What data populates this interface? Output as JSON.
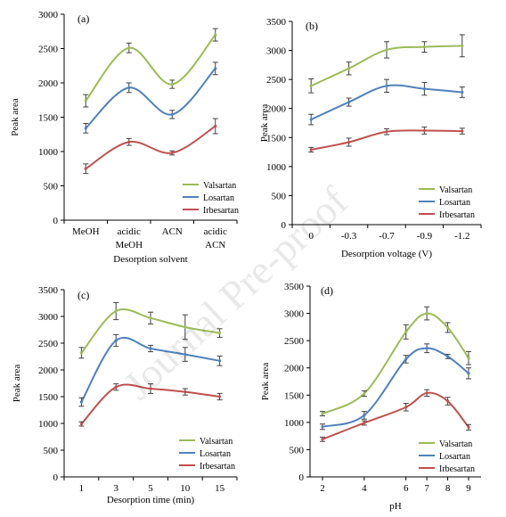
{
  "watermark": "Journal Pre-proof",
  "colors": {
    "Valsartan": "#9bbb59",
    "Losartan": "#4f81bd",
    "Irbesartan": "#c0504d",
    "errorbar": "#404040",
    "axis": "#000000"
  },
  "chart_data": [
    {
      "id": "a",
      "panel_label": "(a)",
      "type": "line",
      "xlabel": "Desorption solvent",
      "ylabel": "Peak area",
      "categories": [
        [
          "MeOH"
        ],
        [
          "acidic",
          "MeOH"
        ],
        [
          "ACN"
        ],
        [
          "acidic",
          "ACN"
        ]
      ],
      "x": [
        0,
        1,
        2,
        3
      ],
      "ylim": [
        0,
        3000
      ],
      "yticks": [
        0,
        500,
        1000,
        1500,
        2000,
        2500,
        3000
      ],
      "legend_position": "bottom-right",
      "series": [
        {
          "name": "Valsartan",
          "values": [
            1740,
            2510,
            1980,
            2700
          ],
          "errors": [
            90,
            70,
            60,
            90
          ]
        },
        {
          "name": "Losartan",
          "values": [
            1340,
            1930,
            1540,
            2210
          ],
          "errors": [
            70,
            70,
            60,
            90
          ]
        },
        {
          "name": "Irbesartan",
          "values": [
            750,
            1140,
            980,
            1370
          ],
          "errors": [
            70,
            50,
            30,
            110
          ]
        }
      ]
    },
    {
      "id": "b",
      "panel_label": "(b)",
      "type": "line",
      "xlabel": "Desorption voltage (V)",
      "ylabel": "Peak area",
      "categories": [
        [
          "0"
        ],
        [
          "-0.3"
        ],
        [
          "-0.7"
        ],
        [
          "-0.9"
        ],
        [
          "-1.2"
        ]
      ],
      "x": [
        0,
        1,
        2,
        3,
        4
      ],
      "ylim": [
        0,
        3500
      ],
      "yticks": [
        0,
        500,
        1000,
        1500,
        2000,
        2500,
        3000,
        3500
      ],
      "legend_position": "bottom-right",
      "series": [
        {
          "name": "Valsartan",
          "values": [
            2390,
            2690,
            3010,
            3060,
            3080
          ],
          "errors": [
            120,
            110,
            140,
            90,
            190
          ]
        },
        {
          "name": "Losartan",
          "values": [
            1810,
            2110,
            2390,
            2340,
            2280
          ],
          "errors": [
            90,
            70,
            110,
            110,
            90
          ]
        },
        {
          "name": "Irbesartan",
          "values": [
            1290,
            1420,
            1600,
            1620,
            1610
          ],
          "errors": [
            40,
            70,
            50,
            60,
            50
          ]
        }
      ]
    },
    {
      "id": "c",
      "panel_label": "(c)",
      "type": "line",
      "xlabel": "Desorption time (min)",
      "ylabel": "Peak area",
      "categories": [
        [
          "1"
        ],
        [
          "3"
        ],
        [
          "5"
        ],
        [
          "10"
        ],
        [
          "15"
        ]
      ],
      "x": [
        0,
        1,
        2,
        3,
        4
      ],
      "ylim": [
        0,
        3500
      ],
      "yticks": [
        0,
        500,
        1000,
        1500,
        2000,
        2500,
        3000,
        3500
      ],
      "legend_position": "bottom-right",
      "series": [
        {
          "name": "Valsartan",
          "values": [
            2320,
            3100,
            2970,
            2800,
            2690
          ],
          "errors": [
            100,
            160,
            110,
            230,
            80
          ]
        },
        {
          "name": "Losartan",
          "values": [
            1400,
            2550,
            2400,
            2290,
            2170
          ],
          "errors": [
            80,
            110,
            60,
            130,
            90
          ]
        },
        {
          "name": "Irbesartan",
          "values": [
            990,
            1680,
            1650,
            1590,
            1500
          ],
          "errors": [
            40,
            60,
            90,
            60,
            60
          ]
        }
      ]
    },
    {
      "id": "d",
      "panel_label": "(d)",
      "type": "line",
      "xlabel": "pH",
      "ylabel": "Peak area",
      "categories": [
        [
          "2"
        ],
        [
          "4"
        ],
        [
          "6"
        ],
        [
          "7"
        ],
        [
          "8"
        ],
        [
          "9"
        ]
      ],
      "x": [
        2,
        4,
        6,
        7,
        8,
        9
      ],
      "xlim": [
        2,
        9
      ],
      "ylim": [
        0,
        3500
      ],
      "yticks": [
        0,
        500,
        1000,
        1500,
        2000,
        2500,
        3000,
        3500
      ],
      "legend_position": "bottom-right",
      "series": [
        {
          "name": "Valsartan",
          "values": [
            1160,
            1530,
            2660,
            3000,
            2740,
            2180
          ],
          "errors": [
            40,
            50,
            130,
            120,
            90,
            120
          ]
        },
        {
          "name": "Losartan",
          "values": [
            920,
            1130,
            2160,
            2360,
            2210,
            1900
          ],
          "errors": [
            50,
            70,
            70,
            80,
            40,
            100
          ]
        },
        {
          "name": "Irbesartan",
          "values": [
            690,
            990,
            1280,
            1540,
            1390,
            910
          ],
          "errors": [
            40,
            40,
            70,
            60,
            70,
            50
          ]
        }
      ]
    }
  ]
}
